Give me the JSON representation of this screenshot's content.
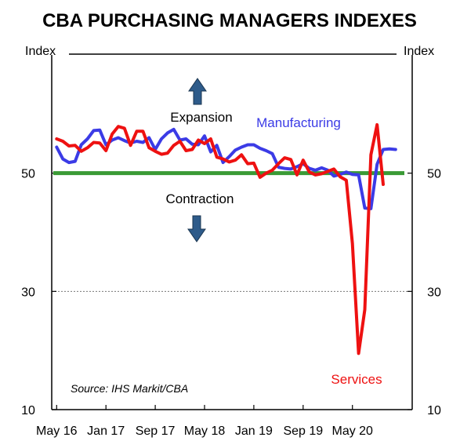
{
  "chart_data": {
    "type": "line",
    "title": "CBA PURCHASING MANAGERS INDEXES",
    "ylabel_left": "Index",
    "ylabel_right": "Index",
    "ylim": [
      10,
      70
    ],
    "yticks": [
      10,
      30,
      50
    ],
    "gridlines_dotted": [
      30
    ],
    "reference_line": {
      "value": 50,
      "color": "#3a9a35"
    },
    "xticks": [
      {
        "label": "May 16",
        "t": 0
      },
      {
        "label": "Jan 17",
        "t": 8
      },
      {
        "label": "Sep 17",
        "t": 16
      },
      {
        "label": "May 18",
        "t": 24
      },
      {
        "label": "Jan 19",
        "t": 32
      },
      {
        "label": "Sep 19",
        "t": 40
      },
      {
        "label": "May 20",
        "t": 48
      }
    ],
    "series": [
      {
        "name": "Manufacturing",
        "color": "#3b3be6",
        "values": [
          54.4,
          52.4,
          51.8,
          52.0,
          54.8,
          55.8,
          57.2,
          57.3,
          54.8,
          55.6,
          56.0,
          55.5,
          55.1,
          55.4,
          55.2,
          56.0,
          54.0,
          55.8,
          56.8,
          57.4,
          55.6,
          55.8,
          54.9,
          54.8,
          56.3,
          53.6,
          54.7,
          51.8,
          52.8,
          53.9,
          54.4,
          54.8,
          54.8,
          54.2,
          53.8,
          53.3,
          51.0,
          50.8,
          50.7,
          51.1,
          51.6,
          50.8,
          50.5,
          50.9,
          50.5,
          49.5,
          49.8,
          50.2,
          49.8,
          49.7,
          44.1,
          44.0,
          51.5,
          54.0,
          54.1,
          54.0
        ],
        "start_t": 0
      },
      {
        "name": "Services",
        "color": "#ee1111",
        "values": [
          55.8,
          55.4,
          54.6,
          54.7,
          53.7,
          54.3,
          55.2,
          55.1,
          53.8,
          56.6,
          57.9,
          57.6,
          54.7,
          57.1,
          57.1,
          54.3,
          53.7,
          53.2,
          53.4,
          54.7,
          55.4,
          53.8,
          54.0,
          55.6,
          55.0,
          55.8,
          52.7,
          52.4,
          51.9,
          52.2,
          53.1,
          51.6,
          51.7,
          49.3,
          50.0,
          50.5,
          51.6,
          52.6,
          52.3,
          49.7,
          52.2,
          50.2,
          49.7,
          49.9,
          50.3,
          50.7,
          49.4,
          48.8,
          38.1,
          19.5,
          26.9,
          53.1,
          58.2,
          48.1
        ],
        "start_t": 0
      }
    ],
    "annotations": {
      "expansion": "Expansion",
      "contraction": "Contraction",
      "source": "Source: IHS Markit/CBA"
    },
    "grid": false,
    "legend": "inline-labels"
  },
  "arrows": {
    "color": "#2e5b8a",
    "up_icon": "up-arrow-icon",
    "down_icon": "down-arrow-icon"
  }
}
